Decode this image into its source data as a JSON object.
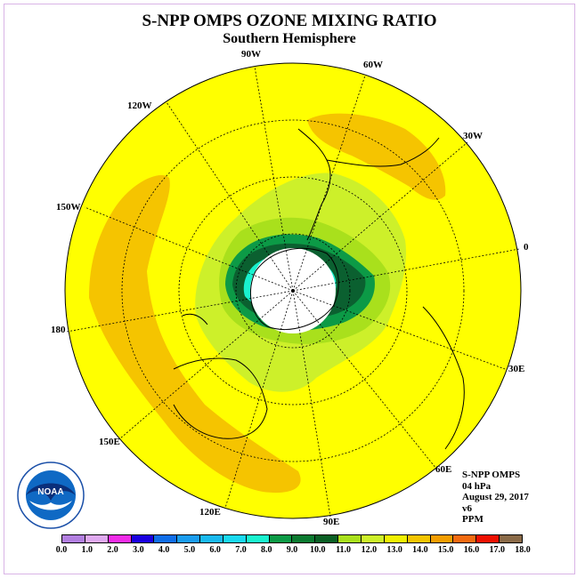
{
  "title": "S-NPP OMPS OZONE MIXING RATIO",
  "subtitle": "Southern Hemisphere",
  "longitude_labels": {
    "w90": "90W",
    "w60": "60W",
    "w120": "120W",
    "w30": "30W",
    "w150": "150W",
    "zero": "0",
    "lon180": "180",
    "e30": "30E",
    "e150": "150E",
    "e60": "60E",
    "e120": "120E",
    "e90": "90E"
  },
  "info": {
    "instrument": "S-NPP OMPS",
    "level": "04 hPa",
    "date": "August 29, 2017",
    "version": "v6",
    "units": "PPM"
  },
  "logo_text": "NOAA",
  "colorbar": {
    "ticks": [
      "0.0",
      "1.0",
      "2.0",
      "3.0",
      "4.0",
      "5.0",
      "6.0",
      "7.0",
      "8.0",
      "9.0",
      "10.0",
      "11.0",
      "12.0",
      "13.0",
      "14.0",
      "15.0",
      "16.0",
      "17.0",
      "18.0"
    ],
    "colors": [
      "#b27fe0",
      "#dfa9f0",
      "#f02ce8",
      "#1a00e0",
      "#0f6ee8",
      "#1a9cee",
      "#19b9ee",
      "#19d9f0",
      "#19f2cf",
      "#0c9a46",
      "#0b7a30",
      "#0a5f24",
      "#a9e01c",
      "#cdf02a",
      "#f0f000",
      "#f3c400",
      "#f39d00",
      "#f26a10",
      "#ee1000",
      "#8a6a48"
    ]
  },
  "regions": {
    "background_color": "#ffff00",
    "orange_color": "#f5c400",
    "ring_colors": [
      "#cdf02a",
      "#a9e01c",
      "#0c9a46",
      "#0b6030",
      "#19f2cf",
      "#ffffff"
    ]
  }
}
